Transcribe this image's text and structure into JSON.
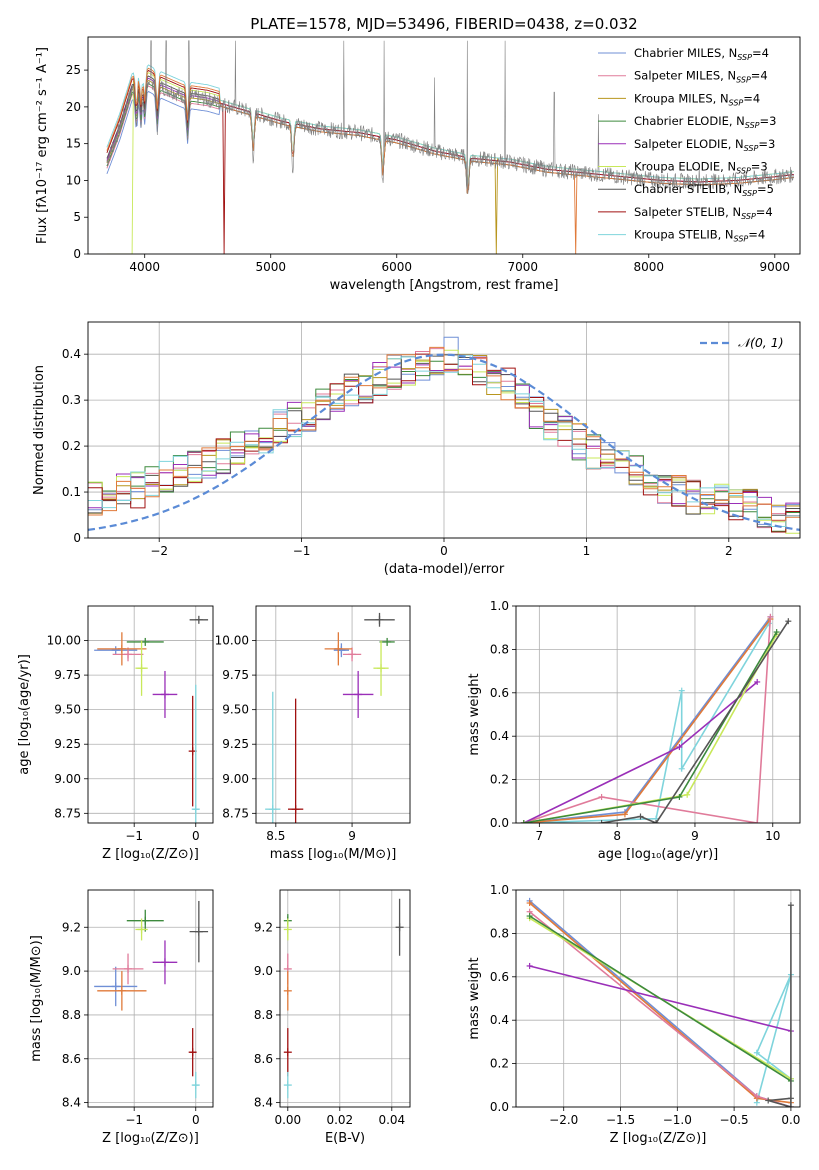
{
  "figure_title": "PLATE=1578, MJD=53496, FIBERID=0438, z=0.032",
  "colors": {
    "Chabrier MILES": "#6f8fd6",
    "Salpeter MILES": "#e07b9a",
    "Kroupa MILES": "#b8961e",
    "Chabrier ELODIE": "#3d8a3d",
    "Salpeter ELODIE": "#9a2fb8",
    "Kroupa ELODIE": "#c8e85a",
    "Chabrier STELIB": "#555555",
    "Salpeter STELIB": "#a01010",
    "Kroupa STELIB": "#7fd4dc",
    "orange": "#e07a3a",
    "normal_curve": "#5b8bd6"
  },
  "chart_data": [
    {
      "id": "spectrum",
      "type": "line",
      "title": "PLATE=1578, MJD=53496, FIBERID=0438, z=0.032",
      "xlabel": "wavelength [Angstrom, rest frame]",
      "ylabel": "Flux [fλ10⁻¹⁷ erg cm⁻² s⁻¹ A⁻¹]",
      "xlim": [
        3550,
        9200
      ],
      "ylim": [
        0,
        29.5
      ],
      "xticks": [
        4000,
        5000,
        6000,
        7000,
        8000,
        9000
      ],
      "yticks": [
        0,
        5,
        10,
        15,
        20,
        25
      ],
      "grid": false,
      "legend_position": "top-right",
      "legend": [
        {
          "name": "Chabrier MILES, N",
          "sub": "SSP",
          "post": "=4",
          "color": "#6f8fd6"
        },
        {
          "name": "Salpeter MILES, N",
          "sub": "SSP",
          "post": "=4",
          "color": "#e07b9a"
        },
        {
          "name": "Kroupa MILES, N",
          "sub": "SSP",
          "post": "=4",
          "color": "#b8961e"
        },
        {
          "name": "Chabrier ELODIE, N",
          "sub": "SSP",
          "post": "=3",
          "color": "#3d8a3d"
        },
        {
          "name": "Salpeter ELODIE, N",
          "sub": "SSP",
          "post": "=3",
          "color": "#9a2fb8"
        },
        {
          "name": "Kroupa ELODIE, N",
          "sub": "SSP",
          "post": "=3",
          "color": "#c8e85a"
        },
        {
          "name": "Chabrier STELIB, N",
          "sub": "SSP",
          "post": "=5",
          "color": "#555555"
        },
        {
          "name": "Salpeter STELIB, N",
          "sub": "SSP",
          "post": "=4",
          "color": "#a01010"
        },
        {
          "name": "Kroupa STELIB, N",
          "sub": "SSP",
          "post": "=4",
          "color": "#7fd4dc"
        }
      ],
      "continuum": [
        [
          3700,
          12.5
        ],
        [
          3800,
          17
        ],
        [
          3900,
          22.5
        ],
        [
          4000,
          24
        ],
        [
          4100,
          23
        ],
        [
          4300,
          21.5
        ],
        [
          4500,
          21
        ],
        [
          4700,
          20
        ],
        [
          4900,
          19
        ],
        [
          5100,
          18
        ],
        [
          5400,
          17
        ],
        [
          5700,
          16.5
        ],
        [
          6000,
          15.5
        ],
        [
          6300,
          14
        ],
        [
          6600,
          13
        ],
        [
          6900,
          12.5
        ],
        [
          7200,
          11.5
        ],
        [
          7500,
          11
        ],
        [
          7800,
          10.5
        ],
        [
          8100,
          10
        ],
        [
          8400,
          9.8
        ],
        [
          8700,
          10
        ],
        [
          9000,
          10.5
        ],
        [
          9150,
          10.8
        ]
      ],
      "model_cutoffs": [
        {
          "color": "#a01010",
          "x": 4630
        },
        {
          "color": "#e07a3a",
          "x": 7420
        },
        {
          "color": "#b8961e",
          "x": 6790
        },
        {
          "color": "#c8e85a",
          "x": 3910
        }
      ],
      "sky_spikes": [
        [
          4050,
          29
        ],
        [
          4170,
          29
        ],
        [
          4350,
          29
        ],
        [
          4720,
          29
        ],
        [
          5580,
          29
        ],
        [
          5900,
          29
        ],
        [
          6300,
          24
        ],
        [
          6560,
          29
        ],
        [
          6860,
          29
        ],
        [
          7250,
          22
        ],
        [
          7600,
          19
        ],
        [
          8400,
          12
        ]
      ]
    },
    {
      "id": "residuals",
      "type": "line",
      "xlabel": "(data-model)/error",
      "ylabel": "Normed distribution",
      "xlim": [
        -2.5,
        2.5
      ],
      "ylim": [
        0,
        0.47
      ],
      "xticks": [
        -2,
        -1,
        0,
        1,
        2
      ],
      "yticks": [
        0.0,
        0.1,
        0.2,
        0.3,
        0.4
      ],
      "grid": true,
      "legend_position": "top-right",
      "legend": [
        {
          "name": "𝒩(0, 1)",
          "color": "#5b8bd6"
        }
      ],
      "bin_width": 0.1,
      "hist_base": [
        0.09,
        0.085,
        0.1,
        0.105,
        0.12,
        0.13,
        0.15,
        0.16,
        0.17,
        0.18,
        0.2,
        0.21,
        0.22,
        0.24,
        0.26,
        0.27,
        0.29,
        0.3,
        0.32,
        0.33,
        0.35,
        0.36,
        0.37,
        0.38,
        0.39,
        0.4,
        0.39,
        0.37,
        0.35,
        0.33,
        0.3,
        0.27,
        0.25,
        0.23,
        0.21,
        0.19,
        0.17,
        0.15,
        0.14,
        0.12,
        0.11,
        0.1,
        0.09,
        0.085,
        0.08,
        0.075,
        0.07,
        0.06,
        0.05,
        0.04
      ]
    },
    {
      "id": "age-vs-Z",
      "type": "scatter",
      "xlabel": "Z [log₁₀(Z/Z⊙)]",
      "ylabel": "age  [log₁₀(age/yr)]",
      "xlim": [
        -1.75,
        0.28
      ],
      "ylim": [
        8.68,
        10.25
      ],
      "xticks": [
        -1,
        0
      ],
      "yticks": [
        8.75,
        9.0,
        9.25,
        9.5,
        9.75,
        10.0
      ],
      "ytick_labels": [
        "8.75",
        "9.00",
        "9.25",
        "9.50",
        "9.75",
        "10.00"
      ],
      "grid": true,
      "points": [
        {
          "x": -1.3,
          "y": 9.93,
          "xerr": 0.35,
          "yerr": 0.0,
          "color": "#6f8fd6"
        },
        {
          "x": -1.1,
          "y": 9.9,
          "xerr": 0.25,
          "yerr": 0.05,
          "color": "#e07b9a"
        },
        {
          "x": -1.2,
          "y": 9.94,
          "xerr": 0.4,
          "yerr": 0.12,
          "color": "#e07a3a"
        },
        {
          "x": -0.82,
          "y": 9.99,
          "xerr": 0.3,
          "yerr": 0.0,
          "color": "#3d8a3d"
        },
        {
          "x": -0.5,
          "y": 9.61,
          "xerr": 0.2,
          "yerr": 0.17,
          "color": "#9a2fb8"
        },
        {
          "x": -0.88,
          "y": 9.8,
          "xerr": 0.1,
          "yerr": 0.2,
          "color": "#c8e85a"
        },
        {
          "x": 0.05,
          "y": 10.15,
          "xerr": 0.15,
          "yerr": 0.0,
          "color": "#555555"
        },
        {
          "x": -0.05,
          "y": 9.2,
          "xerr": 0.0,
          "yerr": 0.4,
          "color": "#a01010"
        },
        {
          "x": 0.0,
          "y": 8.78,
          "xerr": 0.05,
          "yerr": 0.9,
          "color": "#7fd4dc"
        }
      ]
    },
    {
      "id": "age-vs-mass",
      "type": "scatter",
      "xlabel": "mass [log₁₀(M/M⊙)]",
      "ylabel": "",
      "xlim": [
        8.37,
        9.38
      ],
      "ylim": [
        8.68,
        10.25
      ],
      "xticks": [
        8.5,
        9.0
      ],
      "yticks": [
        8.75,
        9.0,
        9.25,
        9.5,
        9.75,
        10.0
      ],
      "ytick_labels": [
        "8.75",
        "9.00",
        "9.25",
        "9.50",
        "9.75",
        "10.00"
      ],
      "grid": true,
      "points": [
        {
          "x": 8.93,
          "y": 9.93,
          "xerr": 0.05,
          "yerr": 0.05,
          "color": "#6f8fd6"
        },
        {
          "x": 9.0,
          "y": 9.9,
          "xerr": 0.06,
          "yerr": 0.05,
          "color": "#e07b9a"
        },
        {
          "x": 8.91,
          "y": 9.94,
          "xerr": 0.09,
          "yerr": 0.12,
          "color": "#e07a3a"
        },
        {
          "x": 9.23,
          "y": 9.99,
          "xerr": 0.05,
          "yerr": 0.0,
          "color": "#3d8a3d"
        },
        {
          "x": 9.04,
          "y": 9.61,
          "xerr": 0.1,
          "yerr": 0.17,
          "color": "#9a2fb8"
        },
        {
          "x": 9.19,
          "y": 9.8,
          "xerr": 0.05,
          "yerr": 0.2,
          "color": "#c8e85a"
        },
        {
          "x": 9.18,
          "y": 10.15,
          "xerr": 0.1,
          "yerr": 0.05,
          "color": "#555555"
        },
        {
          "x": 8.63,
          "y": 8.78,
          "xerr": 0.05,
          "yerr": 0.8,
          "color": "#a01010"
        },
        {
          "x": 8.48,
          "y": 8.78,
          "xerr": 0.05,
          "yerr": 0.85,
          "color": "#7fd4dc"
        }
      ]
    },
    {
      "id": "weight-vs-age",
      "type": "line",
      "xlabel": "age  [log₁₀(age/yr)]",
      "ylabel": "mass weight",
      "xlim": [
        6.7,
        10.35
      ],
      "ylim": [
        0,
        1.0
      ],
      "xticks": [
        7,
        8,
        9,
        10
      ],
      "yticks": [
        0.0,
        0.2,
        0.4,
        0.6,
        0.8,
        1.0
      ],
      "grid": true,
      "series": [
        {
          "color": "#7fd4dc",
          "points": [
            [
              6.8,
              0.0
            ],
            [
              8.5,
              0.02
            ],
            [
              8.83,
              0.61
            ],
            [
              8.83,
              0.25
            ],
            [
              9.95,
              0.92
            ]
          ]
        },
        {
          "color": "#6f8fd6",
          "points": [
            [
              6.8,
              0.0
            ],
            [
              8.1,
              0.05
            ],
            [
              9.97,
              0.95
            ]
          ]
        },
        {
          "color": "#e07a3a",
          "points": [
            [
              6.8,
              0.0
            ],
            [
              8.1,
              0.04
            ],
            [
              9.97,
              0.94
            ]
          ]
        },
        {
          "color": "#e07b9a",
          "points": [
            [
              6.8,
              0.0
            ],
            [
              7.8,
              0.12
            ],
            [
              9.8,
              0.0
            ],
            [
              9.97,
              0.95
            ]
          ]
        },
        {
          "color": "#9a2fb8",
          "points": [
            [
              6.8,
              0.0
            ],
            [
              8.8,
              0.35
            ],
            [
              9.8,
              0.65
            ]
          ]
        },
        {
          "color": "#c8e85a",
          "points": [
            [
              6.8,
              0.0
            ],
            [
              8.9,
              0.13
            ],
            [
              10.05,
              0.87
            ]
          ]
        },
        {
          "color": "#3d8a3d",
          "points": [
            [
              6.8,
              0.0
            ],
            [
              8.8,
              0.12
            ],
            [
              10.05,
              0.88
            ]
          ]
        },
        {
          "color": "#555555",
          "points": [
            [
              7.8,
              0.0
            ],
            [
              8.3,
              0.03
            ],
            [
              8.5,
              0.0
            ],
            [
              10.2,
              0.93
            ]
          ]
        }
      ]
    },
    {
      "id": "mass-vs-Z",
      "type": "scatter",
      "xlabel": "Z [log₁₀(Z/Z⊙)]",
      "ylabel": "mass [log₁₀(M/M⊙)]",
      "xlim": [
        -1.75,
        0.28
      ],
      "ylim": [
        8.38,
        9.37
      ],
      "xticks": [
        -1,
        0
      ],
      "yticks": [
        8.4,
        8.6,
        8.8,
        9.0,
        9.2
      ],
      "grid": true,
      "points": [
        {
          "x": -1.3,
          "y": 8.93,
          "xerr": 0.35,
          "yerr": 0.09,
          "color": "#6f8fd6"
        },
        {
          "x": -1.1,
          "y": 9.01,
          "xerr": 0.25,
          "yerr": 0.07,
          "color": "#e07b9a"
        },
        {
          "x": -1.2,
          "y": 8.91,
          "xerr": 0.4,
          "yerr": 0.09,
          "color": "#e07a3a"
        },
        {
          "x": -0.82,
          "y": 9.23,
          "xerr": 0.3,
          "yerr": 0.05,
          "color": "#3d8a3d"
        },
        {
          "x": -0.5,
          "y": 9.04,
          "xerr": 0.2,
          "yerr": 0.1,
          "color": "#9a2fb8"
        },
        {
          "x": -0.88,
          "y": 9.19,
          "xerr": 0.1,
          "yerr": 0.05,
          "color": "#c8e85a"
        },
        {
          "x": 0.05,
          "y": 9.18,
          "xerr": 0.15,
          "yerr": 0.14,
          "color": "#555555"
        },
        {
          "x": -0.05,
          "y": 8.63,
          "xerr": 0.05,
          "yerr": 0.11,
          "color": "#a01010"
        },
        {
          "x": 0.0,
          "y": 8.48,
          "xerr": 0.05,
          "yerr": 0.06,
          "color": "#7fd4dc"
        }
      ]
    },
    {
      "id": "mass-vs-EBV",
      "type": "scatter",
      "xlabel": "E(B-V)",
      "ylabel": "",
      "xlim": [
        -0.003,
        0.047
      ],
      "ylim": [
        8.38,
        9.37
      ],
      "xticks": [
        0.0,
        0.02,
        0.04
      ],
      "xtick_labels": [
        "0.00",
        "0.02",
        "0.04"
      ],
      "yticks": [
        8.4,
        8.6,
        8.8,
        9.0,
        9.2
      ],
      "grid": true,
      "points": [
        {
          "x": 0.0,
          "y": 9.23,
          "xerr": 0.0,
          "yerr": 0.03,
          "color": "#3d8a3d"
        },
        {
          "x": 0.0,
          "y": 9.19,
          "xerr": 0.0,
          "yerr": 0.05,
          "color": "#c8e85a"
        },
        {
          "x": 0.0,
          "y": 9.01,
          "xerr": 0.0,
          "yerr": 0.07,
          "color": "#e07b9a"
        },
        {
          "x": 0.0,
          "y": 8.91,
          "xerr": 0.0,
          "yerr": 0.09,
          "color": "#e07a3a"
        },
        {
          "x": 0.0,
          "y": 8.63,
          "xerr": 0.0,
          "yerr": 0.11,
          "color": "#a01010"
        },
        {
          "x": 0.0,
          "y": 8.48,
          "xerr": 0.0,
          "yerr": 0.06,
          "color": "#7fd4dc"
        },
        {
          "x": 0.043,
          "y": 9.2,
          "xerr": 0.0,
          "yerr": 0.13,
          "color": "#555555"
        }
      ]
    },
    {
      "id": "weight-vs-Z",
      "type": "line",
      "xlabel": "Z [log₁₀(Z/Z⊙)]",
      "ylabel": "mass weight",
      "xlim": [
        -2.42,
        0.08
      ],
      "ylim": [
        0,
        1.0
      ],
      "xticks": [
        -2.0,
        -1.5,
        -1.0,
        -0.5,
        0.0
      ],
      "xtick_labels": [
        "−2.0",
        "−1.5",
        "−1.0",
        "−0.5",
        "0.0"
      ],
      "yticks": [
        0.0,
        0.2,
        0.4,
        0.6,
        0.8,
        1.0
      ],
      "grid": true,
      "series": [
        {
          "color": "#7fd4dc",
          "points": [
            [
              -0.3,
              0.02
            ],
            [
              0.0,
              0.61
            ],
            [
              -0.3,
              0.25
            ],
            [
              0.0,
              0.13
            ]
          ]
        },
        {
          "color": "#6f8fd6",
          "points": [
            [
              -2.3,
              0.95
            ],
            [
              -0.3,
              0.05
            ],
            [
              0.0,
              0.0
            ]
          ]
        },
        {
          "color": "#e07a3a",
          "points": [
            [
              -2.3,
              0.94
            ],
            [
              -0.3,
              0.04
            ],
            [
              0.0,
              0.02
            ]
          ]
        },
        {
          "color": "#e07b9a",
          "points": [
            [
              -2.3,
              0.9
            ],
            [
              -0.3,
              0.05
            ],
            [
              0.0,
              0.0
            ]
          ]
        },
        {
          "color": "#9a2fb8",
          "points": [
            [
              -2.3,
              0.65
            ],
            [
              0.0,
              0.35
            ]
          ]
        },
        {
          "color": "#c8e85a",
          "points": [
            [
              -2.3,
              0.87
            ],
            [
              0.0,
              0.13
            ]
          ]
        },
        {
          "color": "#3d8a3d",
          "points": [
            [
              -2.3,
              0.88
            ],
            [
              0.0,
              0.12
            ]
          ]
        },
        {
          "color": "#555555",
          "points": [
            [
              0.0,
              0.93
            ],
            [
              0.0,
              0.0
            ],
            [
              -0.2,
              0.03
            ],
            [
              0.0,
              0.04
            ]
          ]
        }
      ]
    }
  ]
}
